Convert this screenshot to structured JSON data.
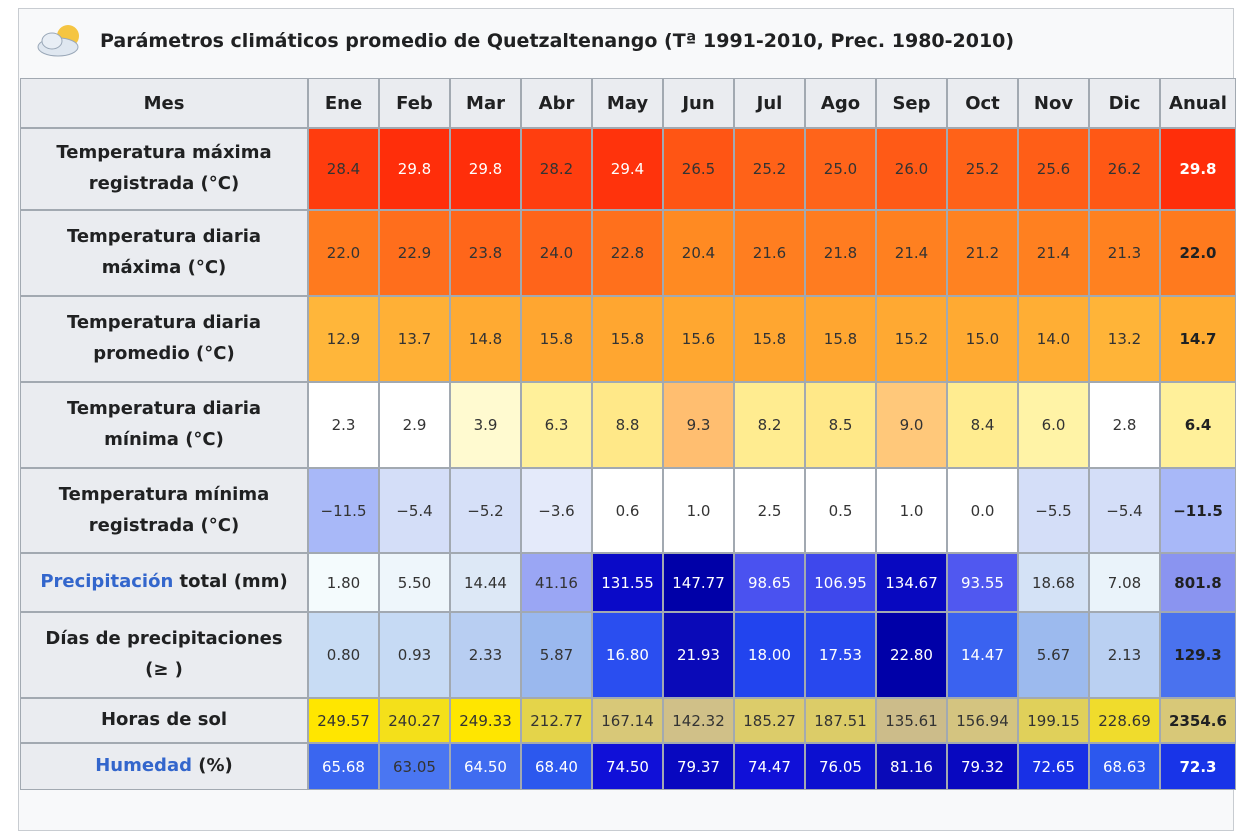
{
  "header": {
    "title": "Parámetros climáticos promedio de Quetzaltenango (Tª 1991-2010, Prec. 1980-2010)"
  },
  "table": {
    "corner": "Mes",
    "columns": [
      "Ene",
      "Feb",
      "Mar",
      "Abr",
      "May",
      "Jun",
      "Jul",
      "Ago",
      "Sep",
      "Oct",
      "Nov",
      "Dic",
      "Anual"
    ],
    "rows": [
      {
        "label": "Temperatura máxima registrada (°C)",
        "cells": [
          "28.4",
          "29.8",
          "29.8",
          "28.2",
          "29.4",
          "26.5",
          "25.2",
          "25.0",
          "26.0",
          "25.2",
          "25.6",
          "26.2",
          "29.8"
        ]
      },
      {
        "label": "Temperatura diaria máxima (°C)",
        "cells": [
          "22.0",
          "22.9",
          "23.8",
          "24.0",
          "22.8",
          "20.4",
          "21.6",
          "21.8",
          "21.4",
          "21.2",
          "21.4",
          "21.3",
          "22.0"
        ]
      },
      {
        "label": "Temperatura diaria promedio (°C)",
        "cells": [
          "12.9",
          "13.7",
          "14.8",
          "15.8",
          "15.8",
          "15.6",
          "15.8",
          "15.8",
          "15.2",
          "15.0",
          "14.0",
          "13.2",
          "14.7"
        ]
      },
      {
        "label": "Temperatura diaria mínima (°C)",
        "cells": [
          "2.3",
          "2.9",
          "3.9",
          "6.3",
          "8.8",
          "9.3",
          "8.2",
          "8.5",
          "9.0",
          "8.4",
          "6.0",
          "2.8",
          "6.4"
        ]
      },
      {
        "label": "Temperatura mínima registrada (°C)",
        "cells": [
          "−11.5",
          "−5.4",
          "−5.2",
          "−3.6",
          "0.6",
          "1.0",
          "2.5",
          "0.5",
          "1.0",
          "0.0",
          "−5.5",
          "−5.4",
          "−11.5"
        ]
      },
      {
        "link": "Precipitación",
        "label": "total (mm)",
        "cells": [
          "1.80",
          "5.50",
          "14.44",
          "41.16",
          "131.55",
          "147.77",
          "98.65",
          "106.95",
          "134.67",
          "93.55",
          "18.68",
          "7.08",
          "801.8"
        ]
      },
      {
        "label": "Días de precipitaciones (≥ )",
        "cells": [
          "0.80",
          "0.93",
          "2.33",
          "5.87",
          "16.80",
          "21.93",
          "18.00",
          "17.53",
          "22.80",
          "14.47",
          "5.67",
          "2.13",
          "129.3"
        ]
      },
      {
        "label": "Horas de sol",
        "cells": [
          "249.57",
          "240.27",
          "249.33",
          "212.77",
          "167.14",
          "142.32",
          "185.27",
          "187.51",
          "135.61",
          "156.94",
          "199.15",
          "228.69",
          "2354.6"
        ]
      },
      {
        "link": "Humedad",
        "label": "(%)",
        "cells": [
          "65.68",
          "63.05",
          "64.50",
          "68.40",
          "74.50",
          "79.37",
          "74.47",
          "76.05",
          "81.16",
          "79.32",
          "72.65",
          "68.63",
          "72.3"
        ]
      }
    ]
  }
}
